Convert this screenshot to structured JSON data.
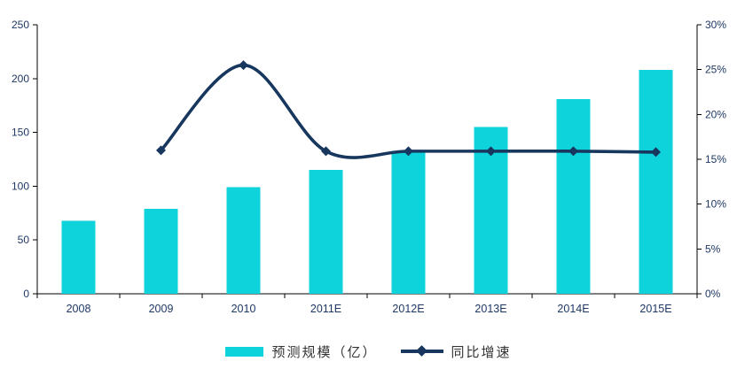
{
  "chart_data": {
    "type": "bar+line",
    "title": "",
    "categories": [
      "2008",
      "2009",
      "2010",
      "2011E",
      "2012E",
      "2013E",
      "2014E",
      "2015E"
    ],
    "series": [
      {
        "name": "预测规模（亿）",
        "type": "bar",
        "axis": "left",
        "color": "#0fd3db",
        "values": [
          68,
          79,
          99,
          115,
          133,
          155,
          181,
          208
        ]
      },
      {
        "name": "同比增速",
        "type": "line",
        "axis": "right",
        "color": "#17375e",
        "marker": "diamond",
        "values": [
          null,
          16,
          25.5,
          15.9,
          15.9,
          15.9,
          15.9,
          15.8
        ]
      }
    ],
    "left_axis": {
      "min": 0,
      "max": 250,
      "step": 50,
      "tick_labels": [
        "0",
        "50",
        "100",
        "150",
        "200",
        "250"
      ]
    },
    "right_axis": {
      "min": 0,
      "max": 30,
      "step": 5,
      "tick_labels": [
        "0%",
        "5%",
        "10%",
        "15%",
        "20%",
        "25%",
        "30%"
      ],
      "unit": "%"
    },
    "grid": false,
    "legend_position": "bottom",
    "axis_text_color": "#1f3864",
    "axis_line_color": "#000000",
    "legend_text_color": "#333333"
  }
}
